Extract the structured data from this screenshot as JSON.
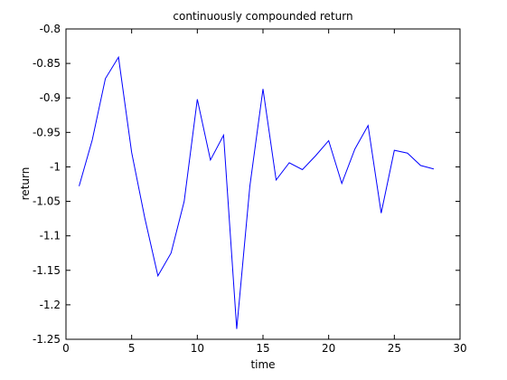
{
  "chart_data": {
    "type": "line",
    "title": "continuously compounded return",
    "xlabel": "time",
    "ylabel": "return",
    "xlim": [
      0,
      30
    ],
    "ylim": [
      -1.25,
      -0.8
    ],
    "x_ticks": [
      0,
      5,
      10,
      15,
      20,
      25,
      30
    ],
    "y_ticks": [
      -1.25,
      -1.2,
      -1.15,
      -1.1,
      -1.05,
      -1,
      -0.95,
      -0.9,
      -0.85,
      -0.8
    ],
    "x_tick_labels": [
      "0",
      "5",
      "10",
      "15",
      "20",
      "25",
      "30"
    ],
    "y_tick_labels": [
      "-1.25",
      "-1.2",
      "-1.15",
      "-1.1",
      "-1.05",
      "-1",
      "-0.95",
      "-0.9",
      "-0.85",
      "-0.8"
    ],
    "grid": false,
    "line_color": "#0000ff",
    "series": [
      {
        "x": [
          1,
          2,
          3,
          4,
          5,
          6,
          7,
          8,
          9,
          10,
          11,
          12,
          13,
          14,
          15,
          16,
          17,
          18,
          19,
          20,
          21,
          22,
          23,
          24,
          25,
          26,
          27,
          28
        ],
        "values": [
          -1.028,
          -0.961,
          -0.872,
          -0.841,
          -0.979,
          -1.074,
          -1.158,
          -1.125,
          -1.05,
          -0.902,
          -0.99,
          -0.954,
          -1.235,
          -1.028,
          -0.887,
          -1.019,
          -0.994,
          -1.004,
          -0.984,
          -0.962,
          -1.024,
          -0.974,
          -0.94,
          -1.067,
          -0.976,
          -0.98,
          -0.998,
          -1.003
        ]
      }
    ]
  }
}
